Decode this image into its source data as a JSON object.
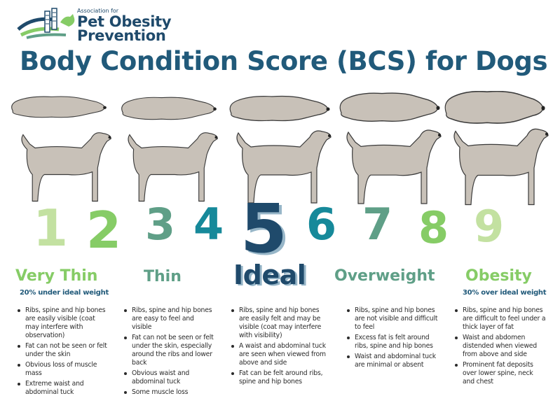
{
  "logo": {
    "org": "Association for",
    "line1": "Pet Obesity",
    "line2": "Prevention"
  },
  "title": "Body Condition Score (BCS) for Dogs",
  "scores": [
    "1",
    "2",
    "3",
    "4",
    "5",
    "6",
    "7",
    "8",
    "9"
  ],
  "categories": {
    "very_thin": {
      "label": "Very Thin",
      "sub": "20% under ideal weight"
    },
    "thin": {
      "label": "Thin"
    },
    "ideal": {
      "label": "Ideal"
    },
    "overweight": {
      "label": "Overweight"
    },
    "obesity": {
      "label": "Obesity",
      "sub": "30% over ideal weight"
    }
  },
  "descriptions": {
    "very_thin": [
      "Ribs, spine and hip bones are easily visible (coat may interfere with observation)",
      "Fat can not be seen or felt under the skin",
      "Obvious loss of muscle mass",
      "Extreme waist and abdominal tuck"
    ],
    "thin": [
      "Ribs, spine and hip bones are easy to feel and visible",
      "Fat can not be seen or felt under the skin, especially around the ribs and lower back",
      "Obvious waist and abdominal tuck",
      "Some muscle loss"
    ],
    "ideal": [
      "Ribs, spine and hip bones are easily felt and may be visible (coat may interfere with visibility)",
      "A waist and abdominal tuck are seen when viewed from above and side",
      "Fat can be felt around ribs, spine and hip bones"
    ],
    "overweight": [
      "Ribs, spine and hip bones are not visible and difficult to feel",
      "Excess fat is felt around ribs, spine and hip bones",
      "Waist and abdominal tuck are minimal or absent"
    ],
    "obesity": [
      "Ribs, spine and hip bones are difficult to feel under a thick layer of fat",
      "Waist and abdomen distended when viewed from above and side",
      "Prominent fat deposits over lower spine, neck and chest"
    ]
  },
  "colors": {
    "navy": "#1f4a6b",
    "title_blue": "#215a7a",
    "teal": "#16899a",
    "sage": "#5f9f87",
    "green": "#86cc66",
    "light_green": "#c3e1a1",
    "dog_fill": "#c8c1b8"
  }
}
